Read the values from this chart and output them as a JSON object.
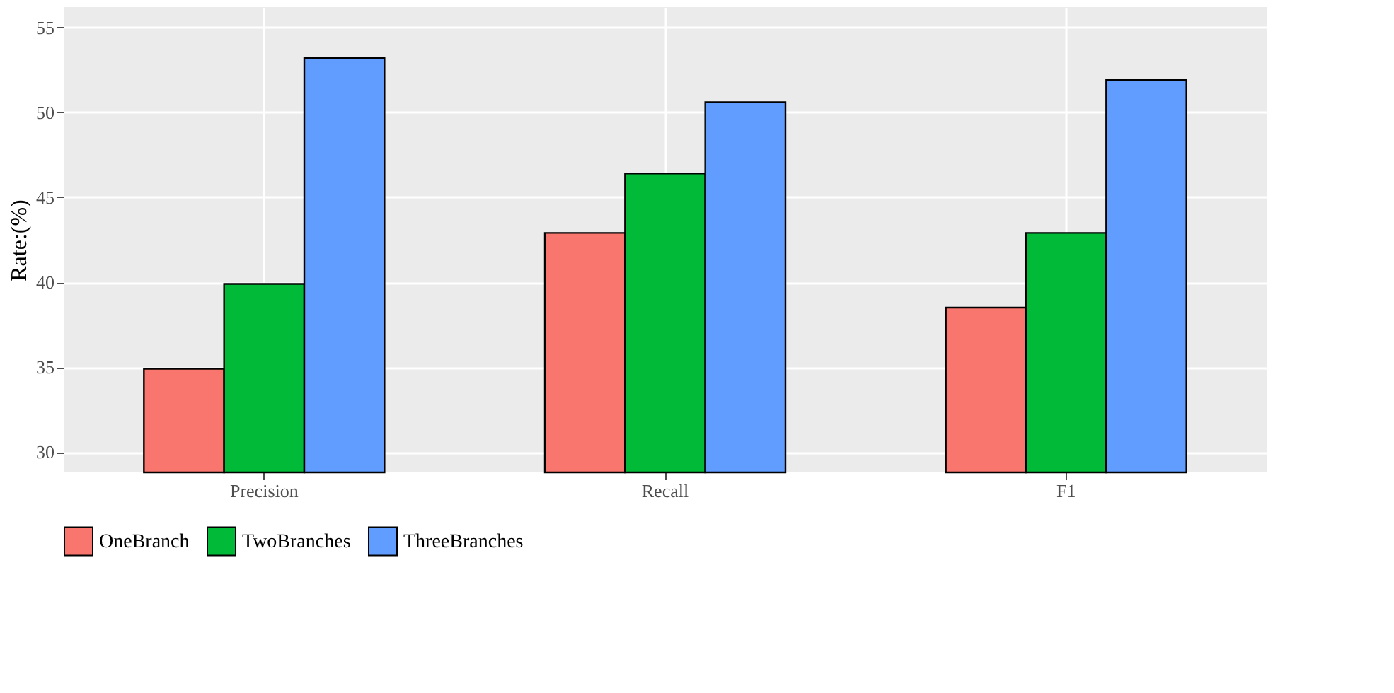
{
  "chart_data": {
    "type": "bar",
    "ylabel": "Rate:(%)",
    "categories": [
      "Precision",
      "Recall",
      "F1"
    ],
    "series": [
      {
        "name": "OneBranch",
        "color": "#f8766d",
        "values": [
          34.9,
          42.9,
          38.5
        ]
      },
      {
        "name": "TwoBranches",
        "color": "#00ba38",
        "values": [
          39.9,
          46.4,
          42.9
        ]
      },
      {
        "name": "ThreeBranches",
        "color": "#619cff",
        "values": [
          53.2,
          50.6,
          51.9
        ]
      }
    ],
    "ylim": [
      28.8,
      56.2
    ],
    "yticks": [
      30,
      35,
      40,
      45,
      50,
      55
    ],
    "grid": true,
    "legend": "bottom"
  }
}
